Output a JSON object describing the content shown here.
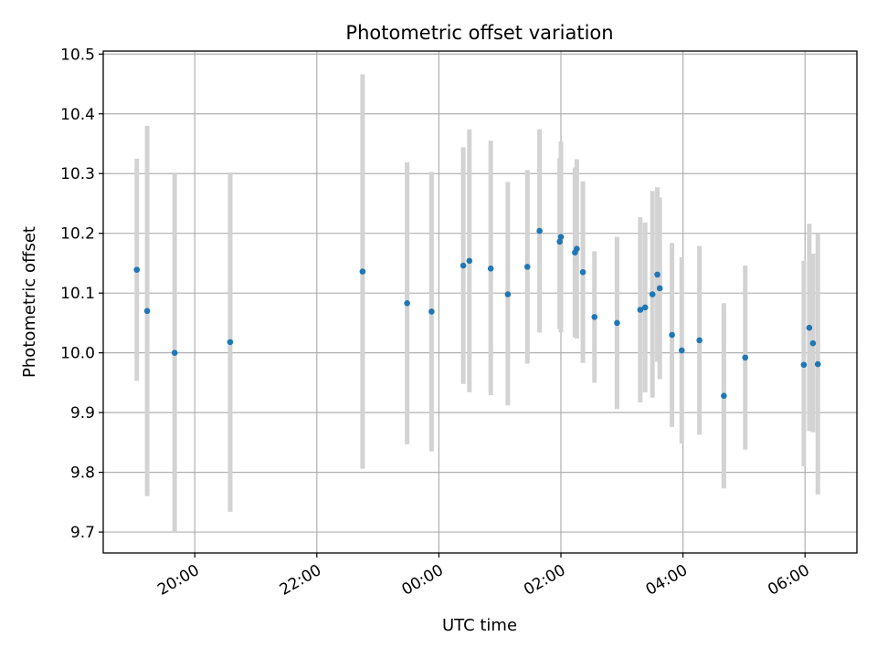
{
  "chart_data": {
    "type": "scatter",
    "title": "Photometric offset variation",
    "xlabel": "UTC time",
    "ylabel": "Photometric offset",
    "x_unit": "hours",
    "xlim": [
      18.5,
      30.85
    ],
    "ylim": [
      9.665,
      10.505
    ],
    "grid": true,
    "x_ticks": [
      {
        "value": 20,
        "label": "20:00"
      },
      {
        "value": 22,
        "label": "22:00"
      },
      {
        "value": 24,
        "label": "00:00"
      },
      {
        "value": 26,
        "label": "02:00"
      },
      {
        "value": 28,
        "label": "04:00"
      },
      {
        "value": 30,
        "label": "06:00"
      }
    ],
    "y_ticks": [
      9.7,
      9.8,
      9.9,
      10.0,
      10.1,
      10.2,
      10.3,
      10.4,
      10.5
    ],
    "y_tick_labels": [
      "9.7",
      "9.8",
      "9.9",
      "10.0",
      "10.1",
      "10.2",
      "10.3",
      "10.4",
      "10.5"
    ],
    "colors": {
      "point": "#1f77b4",
      "errorbar": "#d3d3d3",
      "grid": "#b0b0b0"
    },
    "series": [
      {
        "points": [
          {
            "x": 19.05,
            "y": 10.139,
            "ylo": 9.953,
            "yhi": 10.325
          },
          {
            "x": 19.22,
            "y": 10.07,
            "ylo": 9.76,
            "yhi": 10.38
          },
          {
            "x": 19.67,
            "y": 10.0,
            "ylo": 9.7,
            "yhi": 10.3
          },
          {
            "x": 20.58,
            "y": 10.018,
            "ylo": 9.734,
            "yhi": 10.302
          },
          {
            "x": 22.75,
            "y": 10.136,
            "ylo": 9.806,
            "yhi": 10.466
          },
          {
            "x": 23.48,
            "y": 10.083,
            "ylo": 9.847,
            "yhi": 10.319
          },
          {
            "x": 23.88,
            "y": 10.069,
            "ylo": 9.835,
            "yhi": 10.303
          },
          {
            "x": 24.4,
            "y": 10.146,
            "ylo": 9.948,
            "yhi": 10.344
          },
          {
            "x": 24.5,
            "y": 10.154,
            "ylo": 9.934,
            "yhi": 10.374
          },
          {
            "x": 24.85,
            "y": 10.141,
            "ylo": 9.929,
            "yhi": 10.355
          },
          {
            "x": 25.13,
            "y": 10.098,
            "ylo": 9.912,
            "yhi": 10.286
          },
          {
            "x": 25.45,
            "y": 10.144,
            "ylo": 9.982,
            "yhi": 10.306
          },
          {
            "x": 25.65,
            "y": 10.204,
            "ylo": 10.034,
            "yhi": 10.374
          },
          {
            "x": 25.98,
            "y": 10.186,
            "ylo": 10.04,
            "yhi": 10.326
          },
          {
            "x": 26.0,
            "y": 10.194,
            "ylo": 10.034,
            "yhi": 10.354
          },
          {
            "x": 26.23,
            "y": 10.168,
            "ylo": 10.026,
            "yhi": 10.31
          },
          {
            "x": 26.26,
            "y": 10.174,
            "ylo": 10.024,
            "yhi": 10.324
          },
          {
            "x": 26.36,
            "y": 10.135,
            "ylo": 9.983,
            "yhi": 10.287
          },
          {
            "x": 26.55,
            "y": 10.06,
            "ylo": 9.95,
            "yhi": 10.17
          },
          {
            "x": 26.92,
            "y": 10.05,
            "ylo": 9.906,
            "yhi": 10.194
          },
          {
            "x": 27.3,
            "y": 10.072,
            "ylo": 9.917,
            "yhi": 10.227
          },
          {
            "x": 27.38,
            "y": 10.076,
            "ylo": 9.934,
            "yhi": 10.218
          },
          {
            "x": 27.5,
            "y": 10.098,
            "ylo": 9.925,
            "yhi": 10.271
          },
          {
            "x": 27.58,
            "y": 10.131,
            "ylo": 9.985,
            "yhi": 10.277
          },
          {
            "x": 27.62,
            "y": 10.108,
            "ylo": 9.956,
            "yhi": 10.26
          },
          {
            "x": 27.82,
            "y": 10.03,
            "ylo": 9.876,
            "yhi": 10.184
          },
          {
            "x": 27.98,
            "y": 10.004,
            "ylo": 9.848,
            "yhi": 10.16
          },
          {
            "x": 28.27,
            "y": 10.021,
            "ylo": 9.863,
            "yhi": 10.179
          },
          {
            "x": 28.67,
            "y": 9.928,
            "ylo": 9.773,
            "yhi": 10.083
          },
          {
            "x": 29.02,
            "y": 9.992,
            "ylo": 9.838,
            "yhi": 10.146
          },
          {
            "x": 29.98,
            "y": 9.98,
            "ylo": 9.81,
            "yhi": 10.154
          },
          {
            "x": 30.07,
            "y": 10.042,
            "ylo": 9.869,
            "yhi": 10.216
          },
          {
            "x": 30.13,
            "y": 10.016,
            "ylo": 9.867,
            "yhi": 10.166
          },
          {
            "x": 30.21,
            "y": 9.981,
            "ylo": 9.763,
            "yhi": 10.2
          }
        ]
      }
    ]
  }
}
